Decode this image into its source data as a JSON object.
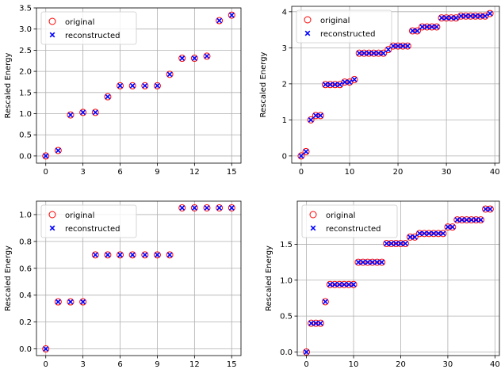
{
  "legend": {
    "original_label": "original",
    "reconstructed_label": "reconstructed",
    "location": "top-left"
  },
  "colors": {
    "original": "#ff0000",
    "reconstructed": "#0000ff",
    "grid": "#b0b0b0"
  },
  "chart_data": [
    {
      "type": "scatter",
      "position": "top-left",
      "title": "",
      "xlabel": "",
      "ylabel": "Rescaled Energy",
      "grid": true,
      "xlim": [
        -0.75,
        15.75
      ],
      "ylim": [
        -0.17,
        3.5
      ],
      "xticks": [
        0,
        3,
        6,
        9,
        12,
        15
      ],
      "yticks": [
        0.0,
        0.5,
        1.0,
        1.5,
        2.0,
        2.5,
        3.0,
        3.5
      ],
      "ytick_labels": [
        "0.0",
        "0.5",
        "1.0",
        "1.5",
        "2.0",
        "2.5",
        "3.0",
        "3.5"
      ],
      "series": [
        {
          "name": "original",
          "marker": "open-circle",
          "x": [
            0,
            1,
            2,
            3,
            4,
            5,
            6,
            7,
            8,
            9,
            10,
            11,
            12,
            13,
            14,
            15
          ],
          "y": [
            0.0,
            0.13,
            0.97,
            1.03,
            1.03,
            1.4,
            1.66,
            1.66,
            1.66,
            1.66,
            1.93,
            2.31,
            2.31,
            2.36,
            3.2,
            3.33
          ]
        },
        {
          "name": "reconstructed",
          "marker": "x",
          "x": [
            0,
            1,
            2,
            3,
            4,
            5,
            6,
            7,
            8,
            9,
            10,
            11,
            12,
            13,
            14,
            15
          ],
          "y": [
            0.0,
            0.13,
            0.97,
            1.03,
            1.03,
            1.4,
            1.66,
            1.66,
            1.66,
            1.66,
            1.93,
            2.31,
            2.31,
            2.36,
            3.2,
            3.33
          ]
        }
      ]
    },
    {
      "type": "scatter",
      "position": "top-right",
      "title": "",
      "xlabel": "",
      "ylabel": "Rescaled Energy",
      "grid": true,
      "xlim": [
        -1.95,
        40.95
      ],
      "ylim": [
        -0.2,
        4.15
      ],
      "xticks": [
        0,
        10,
        20,
        30,
        40
      ],
      "yticks": [
        0,
        1,
        2,
        3,
        4
      ],
      "ytick_labels": [
        "0",
        "1",
        "2",
        "3",
        "4"
      ],
      "series": [
        {
          "name": "original",
          "marker": "open-circle",
          "x": [
            0,
            1,
            2,
            3,
            4,
            5,
            6,
            7,
            8,
            9,
            10,
            11,
            12,
            13,
            14,
            15,
            16,
            17,
            18,
            19,
            20,
            21,
            22,
            23,
            24,
            25,
            26,
            27,
            28,
            29,
            30,
            31,
            32,
            33,
            34,
            35,
            36,
            37,
            38,
            39
          ],
          "y": [
            0.0,
            0.12,
            1.0,
            1.12,
            1.12,
            1.98,
            1.98,
            1.98,
            1.98,
            2.05,
            2.05,
            2.12,
            2.85,
            2.85,
            2.85,
            2.85,
            2.85,
            2.85,
            2.95,
            3.05,
            3.05,
            3.05,
            3.05,
            3.47,
            3.47,
            3.58,
            3.58,
            3.58,
            3.58,
            3.83,
            3.83,
            3.83,
            3.83,
            3.88,
            3.88,
            3.88,
            3.88,
            3.88,
            3.88,
            3.95
          ]
        },
        {
          "name": "reconstructed",
          "marker": "x",
          "x": [
            0,
            1,
            2,
            3,
            4,
            5,
            6,
            7,
            8,
            9,
            10,
            11,
            12,
            13,
            14,
            15,
            16,
            17,
            18,
            19,
            20,
            21,
            22,
            23,
            24,
            25,
            26,
            27,
            28,
            29,
            30,
            31,
            32,
            33,
            34,
            35,
            36,
            37,
            38,
            39
          ],
          "y": [
            0.0,
            0.12,
            1.0,
            1.12,
            1.12,
            1.98,
            1.98,
            1.98,
            1.98,
            2.05,
            2.05,
            2.12,
            2.85,
            2.85,
            2.85,
            2.85,
            2.85,
            2.85,
            2.95,
            3.05,
            3.05,
            3.05,
            3.05,
            3.47,
            3.47,
            3.58,
            3.58,
            3.58,
            3.58,
            3.83,
            3.83,
            3.83,
            3.83,
            3.88,
            3.88,
            3.88,
            3.88,
            3.88,
            3.88,
            3.95
          ]
        }
      ]
    },
    {
      "type": "scatter",
      "position": "bottom-left",
      "title": "",
      "xlabel": "",
      "ylabel": "Rescaled Energy",
      "grid": true,
      "xlim": [
        -0.75,
        15.75
      ],
      "ylim": [
        -0.05,
        1.1
      ],
      "xticks": [
        0,
        3,
        6,
        9,
        12,
        15
      ],
      "yticks": [
        0.0,
        0.2,
        0.4,
        0.6,
        0.8,
        1.0
      ],
      "ytick_labels": [
        "0.0",
        "0.2",
        "0.4",
        "0.6",
        "0.8",
        "1.0"
      ],
      "series": [
        {
          "name": "original",
          "marker": "open-circle",
          "x": [
            0,
            1,
            2,
            3,
            4,
            5,
            6,
            7,
            8,
            9,
            10,
            11,
            12,
            13,
            14,
            15
          ],
          "y": [
            0.0,
            0.35,
            0.35,
            0.35,
            0.7,
            0.7,
            0.7,
            0.7,
            0.7,
            0.7,
            0.7,
            1.05,
            1.05,
            1.05,
            1.05,
            1.05
          ]
        },
        {
          "name": "reconstructed",
          "marker": "x",
          "x": [
            0,
            1,
            2,
            3,
            4,
            5,
            6,
            7,
            8,
            9,
            10,
            11,
            12,
            13,
            14,
            15
          ],
          "y": [
            0.0,
            0.35,
            0.35,
            0.35,
            0.7,
            0.7,
            0.7,
            0.7,
            0.7,
            0.7,
            0.7,
            1.05,
            1.05,
            1.05,
            1.05,
            1.05
          ]
        }
      ]
    },
    {
      "type": "scatter",
      "position": "bottom-right",
      "title": "",
      "xlabel": "",
      "ylabel": "Rescaled Energy",
      "grid": true,
      "xlim": [
        -1.95,
        40.95
      ],
      "ylim": [
        -0.05,
        2.1
      ],
      "xticks": [
        0,
        10,
        20,
        30,
        40
      ],
      "yticks": [
        0.0,
        0.5,
        1.0,
        1.5
      ],
      "ytick_labels": [
        "0.0",
        "0.5",
        "1.0",
        "1.5"
      ],
      "series": [
        {
          "name": "original",
          "marker": "open-circle",
          "x": [
            0,
            1,
            2,
            3,
            4,
            5,
            6,
            7,
            8,
            9,
            10,
            11,
            12,
            13,
            14,
            15,
            16,
            17,
            18,
            19,
            20,
            21,
            22,
            23,
            24,
            25,
            26,
            27,
            28,
            29,
            30,
            31,
            32,
            33,
            34,
            35,
            36,
            37,
            38,
            39
          ],
          "y": [
            0.0,
            0.4,
            0.4,
            0.4,
            0.7,
            0.94,
            0.94,
            0.94,
            0.94,
            0.94,
            0.94,
            1.25,
            1.25,
            1.25,
            1.25,
            1.25,
            1.25,
            1.51,
            1.51,
            1.51,
            1.51,
            1.51,
            1.6,
            1.6,
            1.65,
            1.65,
            1.65,
            1.65,
            1.65,
            1.65,
            1.74,
            1.74,
            1.84,
            1.84,
            1.84,
            1.84,
            1.84,
            1.84,
            1.99,
            1.99
          ]
        },
        {
          "name": "reconstructed",
          "marker": "x",
          "x": [
            0,
            1,
            2,
            3,
            4,
            5,
            6,
            7,
            8,
            9,
            10,
            11,
            12,
            13,
            14,
            15,
            16,
            17,
            18,
            19,
            20,
            21,
            22,
            23,
            24,
            25,
            26,
            27,
            28,
            29,
            30,
            31,
            32,
            33,
            34,
            35,
            36,
            37,
            38,
            39
          ],
          "y": [
            0.0,
            0.4,
            0.4,
            0.4,
            0.7,
            0.94,
            0.94,
            0.94,
            0.94,
            0.94,
            0.94,
            1.25,
            1.25,
            1.25,
            1.25,
            1.25,
            1.25,
            1.51,
            1.51,
            1.51,
            1.51,
            1.51,
            1.6,
            1.6,
            1.65,
            1.65,
            1.65,
            1.65,
            1.65,
            1.65,
            1.74,
            1.74,
            1.84,
            1.84,
            1.84,
            1.84,
            1.84,
            1.84,
            1.99,
            1.99
          ]
        }
      ]
    }
  ]
}
